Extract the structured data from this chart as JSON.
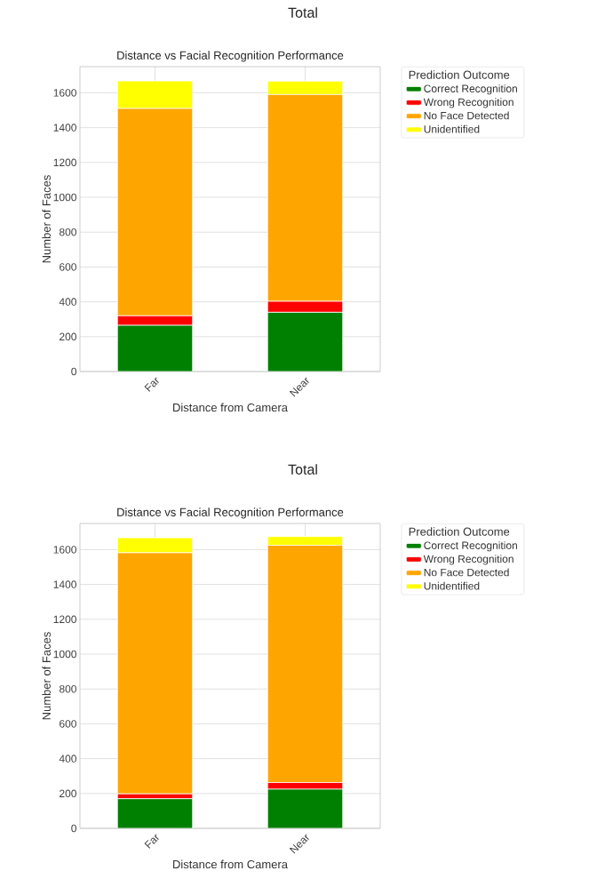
{
  "chart_data": [
    {
      "type": "bar",
      "stacked": true,
      "title": "Total",
      "subtitle": "Distance vs Facial Recognition Performance",
      "xlabel": "Distance from Camera",
      "ylabel": "Number of Faces",
      "legend_title": "Prediction Outcome",
      "legend": "top right",
      "grid": true,
      "categories": [
        "Far",
        "Near"
      ],
      "series": [
        {
          "name": "Correct Recognition",
          "color": "#008000",
          "values": [
            265,
            340
          ]
        },
        {
          "name": "Wrong Recognition",
          "color": "#ff0000",
          "values": [
            55,
            63
          ]
        },
        {
          "name": "No Face Detected",
          "color": "#ffa500",
          "values": [
            1190,
            1187
          ]
        },
        {
          "name": "Unidentified",
          "color": "#ffff00",
          "values": [
            158,
            77
          ]
        }
      ],
      "ylim": [
        0,
        1750
      ],
      "yticks": [
        0,
        200,
        400,
        600,
        800,
        1000,
        1200,
        1400,
        1600
      ]
    },
    {
      "type": "bar",
      "stacked": true,
      "title": "Total",
      "subtitle": "Distance vs Facial Recognition Performance",
      "xlabel": "Distance from Camera",
      "ylabel": "Number of Faces",
      "legend_title": "Prediction Outcome",
      "legend": "top right",
      "grid": true,
      "categories": [
        "Far",
        "Near"
      ],
      "series": [
        {
          "name": "Correct Recognition",
          "color": "#008000",
          "values": [
            170,
            225
          ]
        },
        {
          "name": "Wrong Recognition",
          "color": "#ff0000",
          "values": [
            28,
            38
          ]
        },
        {
          "name": "No Face Detected",
          "color": "#ffa500",
          "values": [
            1384,
            1362
          ]
        },
        {
          "name": "Unidentified",
          "color": "#ffff00",
          "values": [
            86,
            50
          ]
        }
      ],
      "ylim": [
        0,
        1750
      ],
      "yticks": [
        0,
        200,
        400,
        600,
        800,
        1000,
        1200,
        1400,
        1600
      ]
    }
  ]
}
